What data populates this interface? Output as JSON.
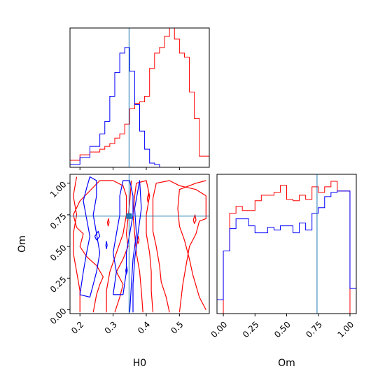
{
  "chart_data": {
    "type": "corner",
    "parameters": [
      "H0",
      "Om"
    ],
    "truths": {
      "H0": 0.348,
      "Om": 0.74
    },
    "truth_color": "#1f77b4",
    "series": [
      {
        "color": "#ff0000"
      },
      {
        "color": "#0000ff"
      }
    ],
    "panels": [
      {
        "id": "hist-H0",
        "xlim": [
          0.17,
          0.59
        ],
        "ylim": [
          0,
          1
        ],
        "xticks": [],
        "yticks": [],
        "histograms": [
          {
            "color": "#ff0000",
            "step_x": [
              0.17,
              0.2,
              0.23,
              0.26,
              0.275,
              0.29,
              0.305,
              0.32,
              0.335,
              0.35,
              0.365,
              0.38,
              0.395,
              0.41,
              0.425,
              0.44,
              0.455,
              0.47,
              0.485,
              0.5,
              0.515,
              0.53,
              0.545,
              0.56,
              0.575,
              0.59
            ],
            "heights": [
              0.05,
              0.09,
              0.11,
              0.13,
              0.15,
              0.17,
              0.21,
              0.24,
              0.31,
              0.42,
              0.46,
              0.47,
              0.51,
              0.71,
              0.82,
              0.86,
              0.94,
              1.0,
              0.92,
              0.82,
              0.79,
              0.54,
              0.35,
              0.08,
              0.08
            ]
          },
          {
            "color": "#0000ff",
            "step_x": [
              0.17,
              0.2,
              0.23,
              0.26,
              0.275,
              0.29,
              0.305,
              0.32,
              0.335,
              0.35,
              0.365,
              0.38,
              0.395,
              0.41,
              0.425,
              0.44
            ],
            "heights": [
              0.02,
              0.07,
              0.15,
              0.24,
              0.33,
              0.51,
              0.68,
              0.82,
              0.86,
              0.69,
              0.45,
              0.26,
              0.13,
              0.03,
              0.02
            ]
          }
        ]
      },
      {
        "id": "contour-H0-Om",
        "xlabel": "H0",
        "ylabel": "Om",
        "xlim": [
          0.17,
          0.59
        ],
        "ylim": [
          -0.03,
          1.07
        ],
        "xticks": [
          0.2,
          0.3,
          0.4,
          0.5
        ],
        "xtick_labels": [
          "0.2",
          "0.3",
          "0.4",
          "0.5"
        ],
        "yticks": [
          0.0,
          0.25,
          0.5,
          0.75,
          1.0
        ],
        "ytick_labels": [
          "0.00",
          "0.25",
          "0.50",
          "0.75",
          "1.00"
        ],
        "contours": [
          {
            "color": "#ff0000",
            "points": [
              [
                0.47,
                -0.02
              ],
              [
                0.46,
                0.1
              ],
              [
                0.445,
                0.22
              ],
              [
                0.44,
                0.35
              ],
              [
                0.43,
                0.5
              ],
              [
                0.42,
                0.62
              ],
              [
                0.42,
                0.75
              ],
              [
                0.42,
                0.88
              ],
              [
                0.43,
                1.0
              ],
              [
                0.47,
                1.02
              ],
              [
                0.5,
                0.98
              ],
              [
                0.55,
                0.95
              ],
              [
                0.58,
                0.9
              ],
              [
                0.58,
                0.72
              ],
              [
                0.56,
                0.7
              ],
              [
                0.55,
                0.6
              ],
              [
                0.53,
                0.5
              ],
              [
                0.52,
                0.35
              ],
              [
                0.51,
                0.2
              ],
              [
                0.5,
                -0.02
              ]
            ]
          },
          {
            "color": "#ff0000",
            "points": [
              [
                0.39,
                -0.02
              ],
              [
                0.385,
                0.15
              ],
              [
                0.38,
                0.3
              ],
              [
                0.37,
                0.45
              ],
              [
                0.365,
                0.6
              ],
              [
                0.36,
                0.75
              ],
              [
                0.365,
                0.9
              ],
              [
                0.37,
                1.0
              ],
              [
                0.4,
                1.02
              ],
              [
                0.41,
                0.9
              ],
              [
                0.4,
                0.75
              ],
              [
                0.4,
                0.6
              ],
              [
                0.41,
                0.45
              ],
              [
                0.415,
                0.3
              ],
              [
                0.415,
                0.15
              ],
              [
                0.42,
                -0.02
              ]
            ]
          },
          {
            "color": "#ff0000",
            "points": [
              [
                0.58,
                0.0
              ],
              [
                0.56,
                0.1
              ],
              [
                0.54,
                0.28
              ],
              [
                0.53,
                0.4
              ],
              [
                0.515,
                0.55
              ],
              [
                0.5,
                0.66
              ],
              [
                0.495,
                0.8
              ],
              [
                0.5,
                0.95
              ],
              [
                0.55,
                1.0
              ],
              [
                0.58,
                1.02
              ]
            ]
          },
          {
            "color": "#ff0000",
            "points": [
              [
                0.24,
                -0.02
              ],
              [
                0.25,
                0.12
              ],
              [
                0.26,
                0.2
              ],
              [
                0.27,
                0.26
              ],
              [
                0.25,
                0.35
              ],
              [
                0.22,
                0.42
              ],
              [
                0.2,
                0.5
              ],
              [
                0.21,
                0.6
              ],
              [
                0.19,
                0.65
              ],
              [
                0.18,
                0.75
              ],
              [
                0.2,
                0.86
              ],
              [
                0.23,
                0.94
              ],
              [
                0.26,
                1.02
              ],
              [
                0.3,
                1.02
              ],
              [
                0.33,
                0.98
              ],
              [
                0.34,
                0.9
              ],
              [
                0.34,
                0.75
              ],
              [
                0.33,
                0.6
              ],
              [
                0.31,
                0.45
              ],
              [
                0.29,
                0.3
              ],
              [
                0.28,
                0.15
              ],
              [
                0.28,
                -0.02
              ]
            ]
          },
          {
            "color": "#ff0000",
            "points": [
              [
                0.2,
                -0.02
              ],
              [
                0.2,
                0.15
              ],
              [
                0.19,
                0.3
              ],
              [
                0.18,
                0.45
              ],
              [
                0.18,
                0.6
              ],
              [
                0.19,
                0.75
              ],
              [
                0.18,
                0.9
              ],
              [
                0.19,
                1.05
              ]
            ]
          },
          {
            "color": "#ff0000",
            "points": [
              [
                0.305,
                -0.02
              ],
              [
                0.32,
                0.1
              ],
              [
                0.33,
                0.2
              ],
              [
                0.31,
                0.3
              ],
              [
                0.33,
                0.4
              ],
              [
                0.345,
                0.5
              ],
              [
                0.34,
                0.6
              ],
              [
                0.345,
                0.72
              ],
              [
                0.35,
                0.85
              ],
              [
                0.355,
                1.02
              ]
            ]
          },
          {
            "color": "#ff0000",
            "points": [
              [
                0.375,
                0.52
              ],
              [
                0.378,
                0.55
              ],
              [
                0.376,
                0.58
              ],
              [
                0.373,
                0.55
              ],
              [
                0.375,
                0.52
              ]
            ]
          },
          {
            "color": "#ff0000",
            "points": [
              [
                0.285,
                0.66
              ],
              [
                0.288,
                0.69
              ],
              [
                0.286,
                0.72
              ],
              [
                0.283,
                0.69
              ],
              [
                0.285,
                0.66
              ]
            ]
          },
          {
            "color": "#ff0000",
            "points": [
              [
                0.405,
                0.85
              ],
              [
                0.409,
                0.88
              ],
              [
                0.407,
                0.92
              ],
              [
                0.403,
                0.88
              ],
              [
                0.405,
                0.85
              ]
            ]
          },
          {
            "color": "#ff0000",
            "points": [
              [
                0.545,
                0.68
              ],
              [
                0.55,
                0.71
              ],
              [
                0.547,
                0.75
              ],
              [
                0.542,
                0.71
              ],
              [
                0.545,
                0.68
              ]
            ]
          },
          {
            "color": "#0000ff",
            "points": [
              [
                0.2,
                0.12
              ],
              [
                0.21,
                0.3
              ],
              [
                0.22,
                0.45
              ],
              [
                0.23,
                0.58
              ],
              [
                0.22,
                0.72
              ],
              [
                0.21,
                0.86
              ],
              [
                0.22,
                0.96
              ],
              [
                0.23,
                1.05
              ],
              [
                0.25,
                1.02
              ],
              [
                0.25,
                0.9
              ],
              [
                0.24,
                0.75
              ],
              [
                0.25,
                0.6
              ],
              [
                0.26,
                0.45
              ],
              [
                0.25,
                0.3
              ],
              [
                0.24,
                0.2
              ],
              [
                0.23,
                0.1
              ],
              [
                0.2,
                0.12
              ]
            ]
          },
          {
            "color": "#0000ff",
            "points": [
              [
                0.3,
                0.12
              ],
              [
                0.31,
                0.3
              ],
              [
                0.3,
                0.45
              ],
              [
                0.31,
                0.6
              ],
              [
                0.32,
                0.75
              ],
              [
                0.32,
                0.9
              ],
              [
                0.33,
                1.02
              ],
              [
                0.35,
                1.02
              ],
              [
                0.36,
                0.9
              ],
              [
                0.36,
                0.75
              ],
              [
                0.35,
                0.6
              ],
              [
                0.34,
                0.45
              ],
              [
                0.34,
                0.3
              ],
              [
                0.33,
                0.12
              ],
              [
                0.3,
                0.12
              ]
            ]
          },
          {
            "color": "#0000ff",
            "points": [
              [
                0.35,
                -0.02
              ],
              [
                0.355,
                0.2
              ],
              [
                0.36,
                0.4
              ],
              [
                0.37,
                0.6
              ],
              [
                0.365,
                0.8
              ],
              [
                0.38,
                1.02
              ],
              [
                0.385,
                0.8
              ],
              [
                0.375,
                0.6
              ],
              [
                0.365,
                0.4
              ],
              [
                0.36,
                0.2
              ],
              [
                0.36,
                -0.02
              ]
            ]
          },
          {
            "color": "#0000ff",
            "points": [
              [
                0.28,
                0.48
              ],
              [
                0.282,
                0.51
              ],
              [
                0.28,
                0.54
              ],
              [
                0.278,
                0.51
              ],
              [
                0.28,
                0.48
              ]
            ]
          },
          {
            "color": "#0000ff",
            "points": [
              [
                0.34,
                0.28
              ],
              [
                0.343,
                0.31
              ],
              [
                0.341,
                0.34
              ],
              [
                0.338,
                0.31
              ],
              [
                0.34,
                0.28
              ]
            ]
          },
          {
            "color": "#0000ff",
            "points": [
              [
                0.25,
                0.55
              ],
              [
                0.26,
                0.58
              ],
              [
                0.255,
                0.62
              ],
              [
                0.245,
                0.58
              ],
              [
                0.25,
                0.55
              ]
            ]
          }
        ]
      },
      {
        "id": "hist-Om",
        "xlabel": "Om",
        "xlim": [
          -0.05,
          1.05
        ],
        "ylim": [
          0,
          1
        ],
        "xticks": [
          0.0,
          0.25,
          0.5,
          0.75,
          1.0
        ],
        "xtick_labels": [
          "0.00",
          "0.25",
          "0.50",
          "0.75",
          "1.00"
        ],
        "yticks": [],
        "histograms": [
          {
            "color": "#ff0000",
            "step_x": [
              0.0,
              0.05,
              0.1,
              0.15,
              0.2,
              0.25,
              0.3,
              0.35,
              0.4,
              0.45,
              0.5,
              0.55,
              0.6,
              0.65,
              0.7,
              0.75,
              0.8,
              0.85,
              0.9,
              0.95,
              1.0
            ],
            "heights": [
              0.45,
              0.72,
              0.77,
              0.74,
              0.74,
              0.81,
              0.85,
              0.85,
              0.87,
              0.92,
              0.82,
              0.81,
              0.85,
              0.82,
              0.91,
              0.87,
              0.91,
              0.95,
              0.88,
              0.88
            ]
          },
          {
            "color": "#0000ff",
            "step_x": [
              -0.05,
              0.0,
              0.05,
              0.1,
              0.15,
              0.2,
              0.25,
              0.3,
              0.35,
              0.4,
              0.45,
              0.5,
              0.55,
              0.6,
              0.65,
              0.7,
              0.75,
              0.8,
              0.85,
              0.9,
              0.95,
              1.0,
              1.05
            ],
            "heights": [
              0.1,
              0.45,
              0.61,
              0.68,
              0.68,
              0.63,
              0.58,
              0.58,
              0.62,
              0.6,
              0.63,
              0.63,
              0.58,
              0.65,
              0.6,
              0.72,
              0.76,
              0.84,
              0.87,
              0.88,
              0.88,
              0.18
            ]
          }
        ]
      }
    ]
  }
}
